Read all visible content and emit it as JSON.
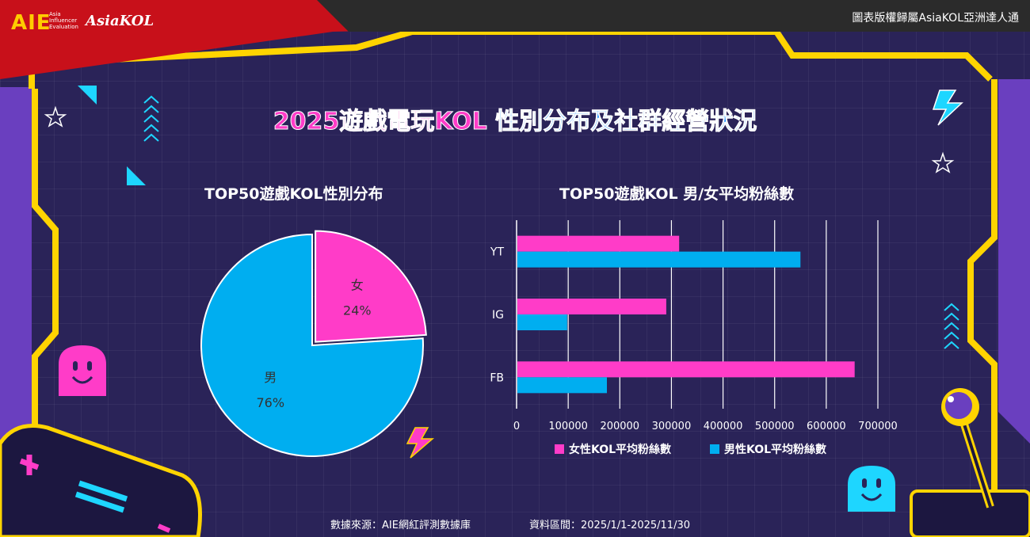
{
  "header": {
    "logo_aie": "AIE",
    "logo_aie_sub": "Asia\nInfluencer\nEvaluation",
    "logo_asiakol": "AsiaKOL",
    "copyright": "圖表版權歸屬AsiaKOL亞洲達人通"
  },
  "title": {
    "part1": "2025遊戲電玩KOL",
    "part2": " 性別分布及社群經營狀況"
  },
  "footer": {
    "source": "數據來源：AIE網紅評測數據庫",
    "period": "資料區間：2025/1/1-2025/11/30"
  },
  "colors": {
    "female": "#ff3cc8",
    "male": "#00aef0",
    "accent_yellow": "#ffd400",
    "background": "#2a2358"
  },
  "chart_data": [
    {
      "type": "pie",
      "title": "TOP50遊戲KOL性別分布",
      "slices": [
        {
          "label": "女",
          "value": 24,
          "display": "24%",
          "color": "#ff3cc8"
        },
        {
          "label": "男",
          "value": 76,
          "display": "76%",
          "color": "#00aef0"
        }
      ]
    },
    {
      "type": "bar",
      "orientation": "horizontal",
      "title": "TOP50遊戲KOL 男/女平均粉絲數",
      "categories": [
        "YT",
        "IG",
        "FB"
      ],
      "series": [
        {
          "name": "女性KOL平均粉絲數",
          "color": "#ff3cc8",
          "values": [
            315000,
            290000,
            655000
          ]
        },
        {
          "name": "男性KOL平均粉絲數",
          "color": "#00aef0",
          "values": [
            550000,
            98000,
            175000
          ]
        }
      ],
      "xlim": [
        0,
        700000
      ],
      "xticks": [
        "0",
        "100000",
        "200000",
        "300000",
        "400000",
        "500000",
        "600000",
        "700000"
      ],
      "grid": true,
      "legend": "bottom"
    }
  ]
}
